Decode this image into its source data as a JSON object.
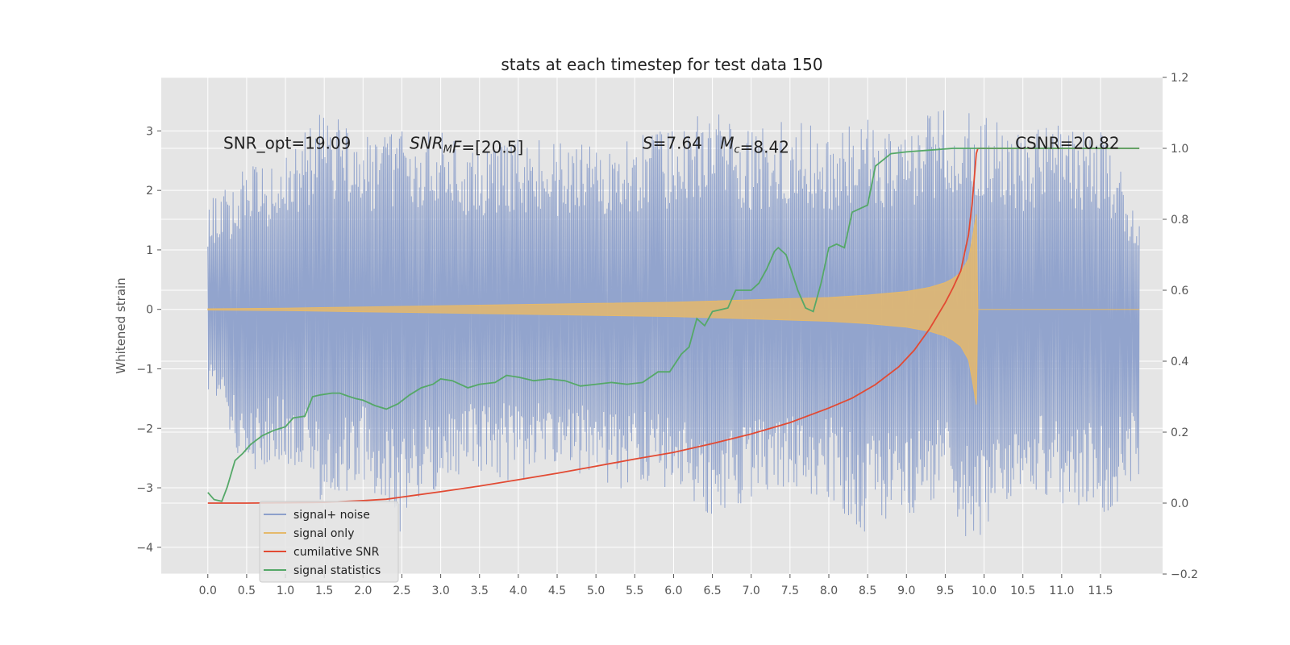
{
  "chart_data": {
    "type": "line",
    "title": "stats at each timestep for test data 150",
    "ylabel": "Whitened strain",
    "xlim": [
      -0.6,
      12.3
    ],
    "ylim": [
      -4.45,
      3.9
    ],
    "ylim_right": [
      -0.2,
      1.2
    ],
    "grid": true,
    "legend_placement": "lower-left",
    "x_ticks": [
      0.0,
      0.5,
      1.0,
      1.5,
      2.0,
      2.5,
      3.0,
      3.5,
      4.0,
      4.5,
      5.0,
      5.5,
      6.0,
      6.5,
      7.0,
      7.5,
      8.0,
      8.5,
      9.0,
      9.5,
      10.0,
      10.5,
      11.0,
      11.5
    ],
    "x_tick_labels": [
      "0.0",
      "0.5",
      "1.0",
      "1.5",
      "2.0",
      "2.5",
      "3.0",
      "3.5",
      "4.0",
      "4.5",
      "5.0",
      "5.5",
      "6.0",
      "6.5",
      "7.0",
      "7.5",
      "8.0",
      "8.5",
      "9.0",
      "9.5",
      "10.0",
      "10.5",
      "11.0",
      "11.5"
    ],
    "y_ticks": [
      -4,
      -3,
      -2,
      -1,
      0,
      1,
      2,
      3
    ],
    "y_tick_labels": [
      "−4",
      "−3",
      "−2",
      "−1",
      "0",
      "1",
      "2",
      "3"
    ],
    "y2_ticks": [
      -0.2,
      0.0,
      0.2,
      0.4,
      0.6,
      0.8,
      1.0,
      1.2
    ],
    "y2_tick_labels": [
      "−0.2",
      "0.0",
      "0.2",
      "0.4",
      "0.6",
      "0.8",
      "1.0",
      "1.2"
    ],
    "annotations": [
      {
        "x": 0.2,
        "y": 2.7,
        "text": "SNR_opt=19.09",
        "parts": [
          {
            "t": "SNR_opt=19.09",
            "italic": false,
            "sub": false
          }
        ]
      },
      {
        "x": 2.6,
        "y": 2.7,
        "text": "SNR_MF=[20.5]",
        "parts": [
          {
            "t": "SNR",
            "italic": true,
            "sub": false
          },
          {
            "t": "M",
            "italic": true,
            "sub": true
          },
          {
            "t": "F",
            "italic": true,
            "sub": false
          },
          {
            "t": "=[20.5]",
            "italic": false,
            "sub": false
          }
        ]
      },
      {
        "x": 5.6,
        "y": 2.7,
        "text": "S=7.64",
        "parts": [
          {
            "t": "S",
            "italic": true,
            "sub": false
          },
          {
            "t": "=7.64",
            "italic": false,
            "sub": false
          }
        ]
      },
      {
        "x": 6.6,
        "y": 2.7,
        "text": "M_c=8.42",
        "parts": [
          {
            "t": "M",
            "italic": true,
            "sub": false
          },
          {
            "t": "c",
            "italic": true,
            "sub": true
          },
          {
            "t": "=8.42",
            "italic": false,
            "sub": false
          }
        ]
      },
      {
        "x": 10.4,
        "y": 2.7,
        "text": "CSNR=20.82",
        "parts": [
          {
            "t": "CSNR=20.82",
            "italic": false,
            "sub": false
          }
        ]
      }
    ],
    "series": [
      {
        "name": "signal+ noise",
        "color": "#8da0cb",
        "axis": "left",
        "x_range": [
          0.0,
          12.0
        ],
        "envelope_upper": [
          [
            0.0,
            1.8
          ],
          [
            0.5,
            2.4
          ],
          [
            1.0,
            2.6
          ],
          [
            1.5,
            3.4
          ],
          [
            2.0,
            2.9
          ],
          [
            2.5,
            3.0
          ],
          [
            3.0,
            3.0
          ],
          [
            3.5,
            2.7
          ],
          [
            4.0,
            2.9
          ],
          [
            4.5,
            2.8
          ],
          [
            5.0,
            2.8
          ],
          [
            5.5,
            2.9
          ],
          [
            6.0,
            3.1
          ],
          [
            6.5,
            3.4
          ],
          [
            7.0,
            3.0
          ],
          [
            7.5,
            3.2
          ],
          [
            8.0,
            3.0
          ],
          [
            8.5,
            3.2
          ],
          [
            9.0,
            3.0
          ],
          [
            9.5,
            3.5
          ],
          [
            10.0,
            3.3
          ],
          [
            10.5,
            3.0
          ],
          [
            11.0,
            3.1
          ],
          [
            11.5,
            3.0
          ],
          [
            12.0,
            1.7
          ]
        ],
        "envelope_lower": [
          [
            0.0,
            -1.5
          ],
          [
            0.5,
            -2.8
          ],
          [
            1.0,
            -2.6
          ],
          [
            1.5,
            -3.3
          ],
          [
            2.0,
            -2.9
          ],
          [
            2.5,
            -3.8
          ],
          [
            3.0,
            -2.9
          ],
          [
            3.5,
            -2.8
          ],
          [
            4.0,
            -2.9
          ],
          [
            4.5,
            -2.7
          ],
          [
            5.0,
            -2.9
          ],
          [
            5.5,
            -3.1
          ],
          [
            6.0,
            -3.1
          ],
          [
            6.5,
            -3.5
          ],
          [
            7.0,
            -3.3
          ],
          [
            7.5,
            -3.0
          ],
          [
            8.0,
            -3.2
          ],
          [
            8.5,
            -3.8
          ],
          [
            9.0,
            -3.5
          ],
          [
            9.5,
            -3.3
          ],
          [
            9.9,
            -4.1
          ],
          [
            10.5,
            -3.0
          ],
          [
            11.0,
            -3.3
          ],
          [
            11.5,
            -3.5
          ],
          [
            12.0,
            -3.0
          ]
        ]
      },
      {
        "name": "signal only",
        "color": "#e5b96b",
        "axis": "left",
        "envelope": [
          [
            0.0,
            0.01
          ],
          [
            1.0,
            0.02
          ],
          [
            2.0,
            0.04
          ],
          [
            3.0,
            0.06
          ],
          [
            4.0,
            0.08
          ],
          [
            5.0,
            0.1
          ],
          [
            6.0,
            0.12
          ],
          [
            7.0,
            0.16
          ],
          [
            7.5,
            0.18
          ],
          [
            8.0,
            0.2
          ],
          [
            8.5,
            0.24
          ],
          [
            9.0,
            0.3
          ],
          [
            9.3,
            0.37
          ],
          [
            9.5,
            0.45
          ],
          [
            9.6,
            0.52
          ],
          [
            9.7,
            0.62
          ],
          [
            9.8,
            0.85
          ],
          [
            9.85,
            1.2
          ],
          [
            9.9,
            1.6
          ],
          [
            9.92,
            0.0
          ],
          [
            12.0,
            0.0
          ]
        ]
      },
      {
        "name": "cumilative SNR",
        "color": "#e24a33",
        "axis": "right",
        "x": [
          0.0,
          0.5,
          1.0,
          1.5,
          2.0,
          2.3,
          2.5,
          3.0,
          3.5,
          4.0,
          4.5,
          5.0,
          5.5,
          6.0,
          6.5,
          7.0,
          7.5,
          8.0,
          8.3,
          8.6,
          8.9,
          9.1,
          9.3,
          9.5,
          9.6,
          9.7,
          9.8,
          9.85,
          9.9,
          9.92,
          12.0
        ],
        "y": [
          0.0,
          0.0,
          0.001,
          0.002,
          0.007,
          0.011,
          0.017,
          0.032,
          0.048,
          0.066,
          0.084,
          0.104,
          0.124,
          0.143,
          0.168,
          0.195,
          0.227,
          0.268,
          0.296,
          0.334,
          0.384,
          0.431,
          0.492,
          0.565,
          0.607,
          0.655,
          0.757,
          0.852,
          0.985,
          1.0,
          1.0
        ]
      },
      {
        "name": "signal statistics",
        "color": "#55a868",
        "axis": "right",
        "x": [
          0.0,
          0.08,
          0.18,
          0.25,
          0.35,
          0.45,
          0.55,
          0.7,
          0.85,
          1.0,
          1.1,
          1.25,
          1.35,
          1.45,
          1.6,
          1.7,
          1.8,
          1.9,
          2.0,
          2.15,
          2.3,
          2.45,
          2.6,
          2.75,
          2.9,
          3.0,
          3.15,
          3.35,
          3.5,
          3.7,
          3.85,
          4.0,
          4.2,
          4.4,
          4.6,
          4.8,
          5.0,
          5.2,
          5.4,
          5.6,
          5.8,
          5.95,
          6.1,
          6.2,
          6.3,
          6.4,
          6.5,
          6.6,
          6.7,
          6.8,
          6.9,
          7.0,
          7.1,
          7.2,
          7.3,
          7.35,
          7.45,
          7.6,
          7.7,
          7.8,
          7.9,
          8.0,
          8.1,
          8.2,
          8.3,
          8.4,
          8.5,
          8.6,
          8.8,
          9.0,
          9.3,
          9.6,
          9.9,
          12.0
        ],
        "y": [
          0.03,
          0.01,
          0.005,
          0.045,
          0.12,
          0.14,
          0.165,
          0.19,
          0.205,
          0.215,
          0.24,
          0.245,
          0.3,
          0.305,
          0.31,
          0.31,
          0.302,
          0.295,
          0.29,
          0.275,
          0.265,
          0.28,
          0.305,
          0.325,
          0.335,
          0.35,
          0.345,
          0.325,
          0.335,
          0.34,
          0.36,
          0.355,
          0.345,
          0.35,
          0.345,
          0.33,
          0.335,
          0.34,
          0.335,
          0.34,
          0.37,
          0.37,
          0.42,
          0.44,
          0.52,
          0.5,
          0.54,
          0.545,
          0.55,
          0.6,
          0.6,
          0.6,
          0.62,
          0.66,
          0.71,
          0.72,
          0.7,
          0.6,
          0.55,
          0.54,
          0.62,
          0.72,
          0.73,
          0.72,
          0.82,
          0.83,
          0.84,
          0.95,
          0.985,
          0.99,
          0.995,
          1.0,
          1.0,
          1.0
        ]
      }
    ]
  }
}
